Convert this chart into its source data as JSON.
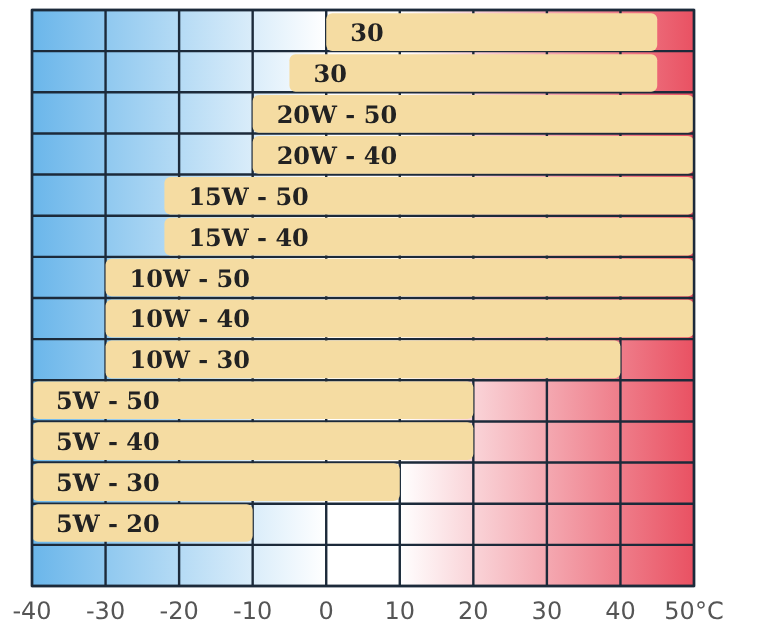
{
  "chart_data": {
    "type": "bar",
    "orientation": "horizontal",
    "categories": [
      "30",
      "30",
      "20W - 50",
      "20W - 40",
      "15W - 50",
      "15W - 40",
      "10W - 50",
      "10W - 40",
      "10W - 30",
      "5W - 50",
      "5W - 40",
      "5W - 30",
      "5W - 20",
      null
    ],
    "base": [
      0,
      -5,
      -10,
      -10,
      -22,
      -22,
      -30,
      -30,
      -30,
      -40,
      -40,
      -40,
      -40,
      null
    ],
    "values": [
      45,
      50,
      60,
      60,
      72,
      72,
      80,
      80,
      70,
      60,
      60,
      50,
      30,
      null
    ],
    "color": "#f5dca2",
    "xlim": [
      -40,
      50
    ],
    "xticks": [
      -40,
      -30,
      -20,
      -10,
      0,
      10,
      20,
      30,
      40,
      {
        "value": 50,
        "label": "50°C"
      }
    ],
    "tick_labels": "x",
    "grid": true,
    "bands": [
      {
        "axis": "x",
        "from": -40,
        "to": 0,
        "color": "#5aaee8"
      },
      {
        "axis": "x",
        "from": 10,
        "to": 50,
        "color": "#e8485a"
      }
    ]
  }
}
